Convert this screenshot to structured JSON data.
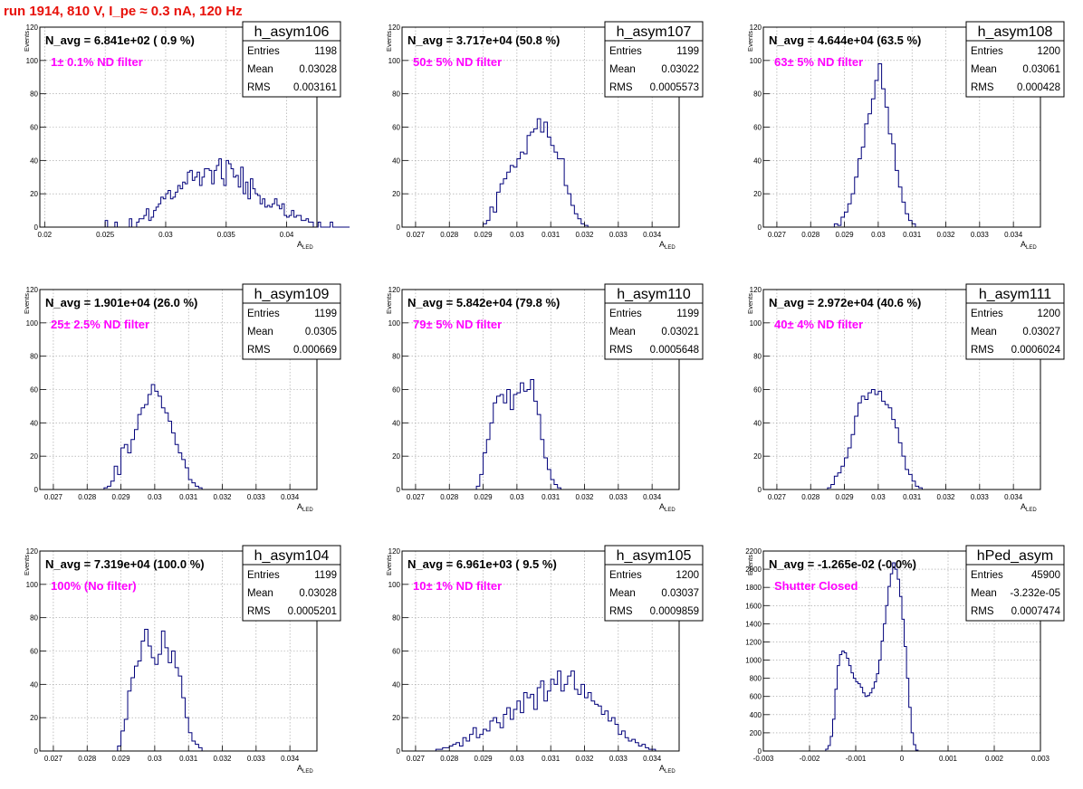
{
  "title": "run 1914,   810 V, I_pe ≈ 0.3 nA, 120 Hz",
  "colors": {
    "hist": "#00007a",
    "annotation": "#ff00ff",
    "title": "#e8110a",
    "grid": "#9a9a9a"
  },
  "chart_data": [
    {
      "type": "bar",
      "name": "h_asym106",
      "ylabel": "Events",
      "xlabel": "A_LED",
      "xlim": [
        0.0196,
        0.0425
      ],
      "xticks": [
        0.02,
        0.025,
        0.03,
        0.035,
        0.04
      ],
      "xtick_labels": [
        "0.02",
        "0.025",
        "0.03",
        "0.035",
        "0.04"
      ],
      "ylim": [
        0,
        120
      ],
      "yticks": [
        0,
        20,
        40,
        60,
        80,
        100,
        120
      ],
      "stats": {
        "header": "h_asym106",
        "rows": [
          [
            "Entries",
            "1198"
          ],
          [
            "Mean",
            "0.03028"
          ],
          [
            "RMS",
            "0.003161"
          ]
        ]
      },
      "nav_text": "N_avg = 6.841e+02 ( 0.9 %)",
      "filter_text": "1± 0.1% ND filter",
      "bin_start": 0.02,
      "bin_width": 0.0002,
      "values": [
        0,
        0,
        0,
        0,
        0,
        0,
        0,
        0,
        0,
        0,
        0,
        0,
        0,
        0,
        0,
        0,
        0,
        0,
        0,
        0,
        0,
        0,
        0,
        0,
        0,
        4,
        0,
        0,
        0,
        3,
        0,
        0,
        0,
        0,
        0,
        5,
        0,
        0,
        3,
        5,
        5,
        7,
        11,
        4,
        6,
        10,
        12,
        14,
        18,
        17,
        20,
        22,
        17,
        18,
        21,
        25,
        23,
        27,
        26,
        33,
        34,
        28,
        30,
        33,
        25,
        30,
        35,
        35,
        34,
        26,
        34,
        37,
        41,
        29,
        25,
        40,
        38,
        35,
        30,
        31,
        24,
        36,
        20,
        27,
        17,
        29,
        23,
        20,
        19,
        14,
        17,
        12,
        13,
        12,
        14,
        17,
        13,
        11,
        14,
        7,
        6,
        7,
        10,
        6,
        7,
        7,
        4,
        4,
        5,
        3,
        3,
        0,
        0,
        3,
        0,
        0,
        0,
        0,
        3,
        0,
        0,
        0,
        0,
        0,
        0,
        0
      ]
    },
    {
      "type": "bar",
      "name": "h_asym107",
      "ylabel": "Events",
      "xlabel": "A_LED",
      "xlim": [
        0.0266,
        0.0348
      ],
      "xticks": [
        0.027,
        0.028,
        0.029,
        0.03,
        0.031,
        0.032,
        0.033,
        0.034
      ],
      "xtick_labels": [
        "0.027",
        "0.028",
        "0.029",
        "0.03",
        "0.031",
        "0.032",
        "0.033",
        "0.034"
      ],
      "ylim": [
        0,
        120
      ],
      "yticks": [
        0,
        20,
        40,
        60,
        80,
        100,
        120
      ],
      "stats": {
        "header": "h_asym107",
        "rows": [
          [
            "Entries",
            "1199"
          ],
          [
            "Mean",
            "0.03022"
          ],
          [
            "RMS",
            "0.0005573"
          ]
        ]
      },
      "nav_text": "N_avg = 3.717e+04 (50.8 %)",
      "filter_text": "50± 5% ND filter",
      "bin_start": 0.0285,
      "bin_width": 0.0001,
      "values": [
        0,
        0,
        0,
        0,
        0,
        2,
        4,
        12,
        9,
        21,
        26,
        29,
        33,
        37,
        36,
        41,
        45,
        44,
        55,
        57,
        59,
        65,
        57,
        63,
        54,
        49,
        45,
        41,
        41,
        25,
        20,
        13,
        8,
        5,
        2,
        1,
        0,
        0,
        0,
        0
      ]
    },
    {
      "type": "bar",
      "name": "h_asym108",
      "ylabel": "Events",
      "xlabel": "A_LED",
      "xlim": [
        0.0266,
        0.0348
      ],
      "xticks": [
        0.027,
        0.028,
        0.029,
        0.03,
        0.031,
        0.032,
        0.033,
        0.034
      ],
      "xtick_labels": [
        "0.027",
        "0.028",
        "0.029",
        "0.03",
        "0.031",
        "0.032",
        "0.033",
        "0.034"
      ],
      "ylim": [
        0,
        120
      ],
      "yticks": [
        0,
        20,
        40,
        60,
        80,
        100,
        120
      ],
      "stats": {
        "header": "h_asym108",
        "rows": [
          [
            "Entries",
            "1200"
          ],
          [
            "Mean",
            "0.03061"
          ],
          [
            "RMS",
            "0.000428"
          ]
        ]
      },
      "nav_text": "N_avg = 4.644e+04 (63.5 %)",
      "filter_text": "63± 5% ND filter",
      "bin_start": 0.0286,
      "bin_width": 0.0001,
      "values": [
        0,
        2,
        1,
        6,
        9,
        14,
        20,
        30,
        41,
        48,
        62,
        68,
        77,
        88,
        98,
        83,
        72,
        56,
        50,
        34,
        24,
        15,
        8,
        4,
        2,
        0,
        0
      ]
    },
    {
      "type": "bar",
      "name": "h_asym109",
      "ylabel": "Events",
      "xlabel": "A_LED",
      "xlim": [
        0.0266,
        0.0348
      ],
      "xticks": [
        0.027,
        0.028,
        0.029,
        0.03,
        0.031,
        0.032,
        0.033,
        0.034
      ],
      "xtick_labels": [
        "0.027",
        "0.028",
        "0.029",
        "0.03",
        "0.031",
        "0.032",
        "0.033",
        "0.034"
      ],
      "ylim": [
        0,
        120
      ],
      "yticks": [
        0,
        20,
        40,
        60,
        80,
        100,
        120
      ],
      "stats": {
        "header": "h_asym109",
        "rows": [
          [
            "Entries",
            "1199"
          ],
          [
            "Mean",
            "0.0305"
          ],
          [
            "RMS",
            "0.000669"
          ]
        ]
      },
      "nav_text": "N_avg = 1.901e+04 (26.0 %)",
      "filter_text": "25± 2.5% ND filter",
      "bin_start": 0.0285,
      "bin_width": 0.0001,
      "values": [
        1,
        2,
        5,
        14,
        9,
        25,
        27,
        22,
        30,
        36,
        45,
        49,
        51,
        57,
        63,
        59,
        56,
        49,
        46,
        41,
        34,
        27,
        22,
        18,
        13,
        6,
        4,
        2,
        1,
        0
      ]
    },
    {
      "type": "bar",
      "name": "h_asym110",
      "ylabel": "Events",
      "xlabel": "A_LED",
      "xlim": [
        0.0266,
        0.0348
      ],
      "xticks": [
        0.027,
        0.028,
        0.029,
        0.03,
        0.031,
        0.032,
        0.033,
        0.034
      ],
      "xtick_labels": [
        "0.027",
        "0.028",
        "0.029",
        "0.03",
        "0.031",
        "0.032",
        "0.033",
        "0.034"
      ],
      "ylim": [
        0,
        120
      ],
      "yticks": [
        0,
        20,
        40,
        60,
        80,
        100,
        120
      ],
      "stats": {
        "header": "h_asym110",
        "rows": [
          [
            "Entries",
            "1199"
          ],
          [
            "Mean",
            "0.03021"
          ],
          [
            "RMS",
            "0.0005648"
          ]
        ]
      },
      "nav_text": "N_avg = 5.842e+04 (79.8 %)",
      "filter_text": "79± 5% ND filter",
      "bin_start": 0.0288,
      "bin_width": 0.0001,
      "values": [
        2,
        9,
        22,
        30,
        40,
        52,
        56,
        57,
        52,
        60,
        48,
        57,
        58,
        64,
        59,
        60,
        66,
        53,
        45,
        30,
        19,
        12,
        6,
        3,
        1,
        0
      ]
    },
    {
      "type": "bar",
      "name": "h_asym111",
      "ylabel": "Events",
      "xlabel": "A_LED",
      "xlim": [
        0.0266,
        0.0348
      ],
      "xticks": [
        0.027,
        0.028,
        0.029,
        0.03,
        0.031,
        0.032,
        0.033,
        0.034
      ],
      "xtick_labels": [
        "0.027",
        "0.028",
        "0.029",
        "0.03",
        "0.031",
        "0.032",
        "0.033",
        "0.034"
      ],
      "ylim": [
        0,
        120
      ],
      "yticks": [
        0,
        20,
        40,
        60,
        80,
        100,
        120
      ],
      "stats": {
        "header": "h_asym111",
        "rows": [
          [
            "Entries",
            "1200"
          ],
          [
            "Mean",
            "0.03027"
          ],
          [
            "RMS",
            "0.0006024"
          ]
        ]
      },
      "nav_text": "N_avg = 2.972e+04 (40.6 %)",
      "filter_text": "40± 4% ND filter",
      "bin_start": 0.0285,
      "bin_width": 0.0001,
      "values": [
        1,
        3,
        8,
        10,
        14,
        19,
        25,
        33,
        44,
        52,
        56,
        54,
        58,
        60,
        57,
        59,
        53,
        51,
        49,
        42,
        37,
        28,
        20,
        12,
        9,
        5,
        2,
        1
      ]
    },
    {
      "type": "bar",
      "name": "h_asym104",
      "ylabel": "Events",
      "xlabel": "A_LED",
      "xlim": [
        0.0266,
        0.0348
      ],
      "xticks": [
        0.027,
        0.028,
        0.029,
        0.03,
        0.031,
        0.032,
        0.033,
        0.034
      ],
      "xtick_labels": [
        "0.027",
        "0.028",
        "0.029",
        "0.03",
        "0.031",
        "0.032",
        "0.033",
        "0.034"
      ],
      "ylim": [
        0,
        120
      ],
      "yticks": [
        0,
        20,
        40,
        60,
        80,
        100,
        120
      ],
      "stats": {
        "header": "h_asym104",
        "rows": [
          [
            "Entries",
            "1199"
          ],
          [
            "Mean",
            "0.03028"
          ],
          [
            "RMS",
            "0.0005201"
          ]
        ]
      },
      "nav_text": "N_avg = 7.319e+04 (100.0 %)",
      "filter_text": "100% (No filter)",
      "bin_start": 0.0288,
      "bin_width": 0.0001,
      "values": [
        0,
        3,
        12,
        19,
        36,
        44,
        51,
        54,
        66,
        73,
        63,
        56,
        52,
        58,
        72,
        62,
        53,
        60,
        50,
        45,
        32,
        20,
        11,
        6,
        4,
        2,
        0
      ]
    },
    {
      "type": "bar",
      "name": "h_asym105",
      "ylabel": "Events",
      "xlabel": "A_LED",
      "xlim": [
        0.0266,
        0.0348
      ],
      "xticks": [
        0.027,
        0.028,
        0.029,
        0.03,
        0.031,
        0.032,
        0.033,
        0.034
      ],
      "xtick_labels": [
        "0.027",
        "0.028",
        "0.029",
        "0.03",
        "0.031",
        "0.032",
        "0.033",
        "0.034"
      ],
      "ylim": [
        0,
        120
      ],
      "yticks": [
        0,
        20,
        40,
        60,
        80,
        100,
        120
      ],
      "stats": {
        "header": "h_asym105",
        "rows": [
          [
            "Entries",
            "1200"
          ],
          [
            "Mean",
            "0.03037"
          ],
          [
            "RMS",
            "0.0009859"
          ]
        ]
      },
      "nav_text": "N_avg = 6.961e+03 ( 9.5 %)",
      "filter_text": "10± 1% ND filter",
      "bin_start": 0.0275,
      "bin_width": 0.0001,
      "values": [
        0,
        1,
        1,
        2,
        2,
        3,
        4,
        5,
        3,
        8,
        6,
        10,
        14,
        8,
        10,
        13,
        12,
        18,
        20,
        17,
        14,
        22,
        26,
        19,
        25,
        30,
        23,
        35,
        32,
        34,
        25,
        38,
        42,
        30,
        36,
        43,
        40,
        48,
        36,
        40,
        45,
        48,
        37,
        34,
        40,
        32,
        35,
        30,
        28,
        27,
        22,
        24,
        18,
        20,
        16,
        10,
        12,
        8,
        6,
        7,
        5,
        3,
        4,
        2,
        1,
        1,
        0,
        0
      ]
    },
    {
      "type": "bar",
      "name": "hPed_asym",
      "ylabel": "Events",
      "xlabel": "",
      "xlim": [
        -0.003,
        0.003
      ],
      "xticks": [
        -0.003,
        -0.002,
        -0.001,
        0,
        0.001,
        0.002,
        0.003
      ],
      "xtick_labels": [
        "-0.003",
        "-0.002",
        "-0.001",
        "0",
        "0.001",
        "0.002",
        "0.003"
      ],
      "ylim": [
        0,
        2200
      ],
      "yticks": [
        0,
        200,
        400,
        600,
        800,
        1000,
        1200,
        1400,
        1600,
        1800,
        2000,
        2200
      ],
      "stats": {
        "header": "hPed_asym",
        "rows": [
          [
            "Entries",
            "45900"
          ],
          [
            "Mean",
            "-3.232e-05"
          ],
          [
            "RMS",
            "0.0007474"
          ]
        ]
      },
      "nav_text": "N_avg = -1.265e-02 (-0.0%)",
      "filter_text": "Shutter Closed",
      "bin_start": -0.00165,
      "bin_width": 5e-05,
      "values": [
        20,
        60,
        160,
        350,
        680,
        940,
        1060,
        1100,
        1080,
        1020,
        940,
        860,
        800,
        760,
        740,
        700,
        640,
        600,
        610,
        640,
        690,
        760,
        850,
        1000,
        1210,
        1400,
        1600,
        1810,
        1950,
        2070,
        2000,
        1890,
        1700,
        1450,
        1150,
        800,
        480,
        200,
        70,
        10
      ]
    }
  ]
}
